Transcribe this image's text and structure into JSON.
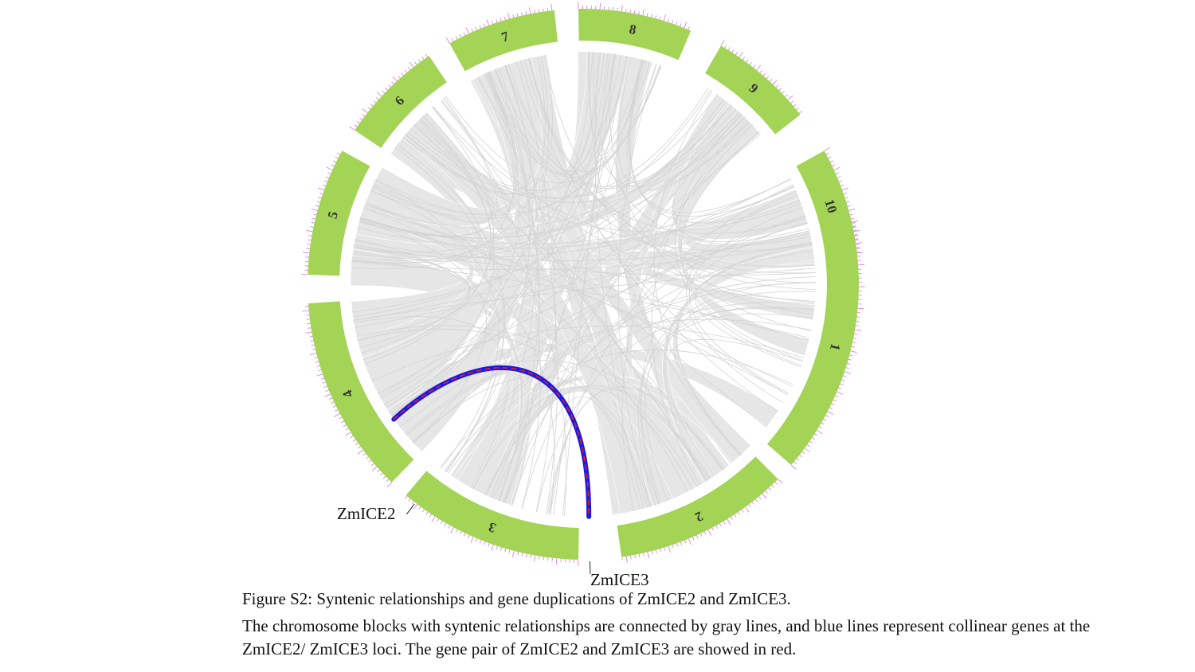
{
  "figure": {
    "chromosomes": [
      {
        "label": "1"
      },
      {
        "label": "2"
      },
      {
        "label": "3"
      },
      {
        "label": "4"
      },
      {
        "label": "5"
      },
      {
        "label": "6"
      },
      {
        "label": "7"
      },
      {
        "label": "8"
      },
      {
        "label": "9"
      },
      {
        "label": "10"
      }
    ],
    "genes": {
      "zmice2": "ZmICE2",
      "zmice3": "ZmICE3"
    },
    "highlight_pair": [
      "ZmICE2",
      "ZmICE3"
    ],
    "colors": {
      "chromosome_block": "#a3d456",
      "synteny_links": "#e6e6e6",
      "collinear_links": "#1a1ae6",
      "gene_pair": "#e02020",
      "ticks": "#e080e0"
    }
  },
  "caption": {
    "title": "Figure S2: Syntenic relationships and gene duplications of ZmICE2 and ZmICE3.",
    "body": "The chromosome blocks with syntenic relationships are connected by gray lines, and blue lines represent collinear genes at the ZmICE2/ ZmICE3 loci. The gene pair of ZmICE2 and ZmICE3 are showed in red."
  }
}
